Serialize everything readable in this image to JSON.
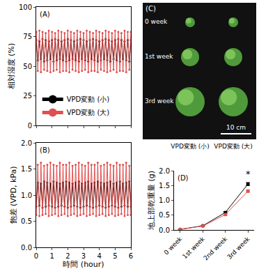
{
  "chart_data": [
    {
      "type": "line",
      "panel": "(A)",
      "y_label": "相対湿度 (%)",
      "x": [
        0,
        0.1,
        0.2,
        0.3,
        0.4,
        0.5,
        0.6,
        0.7,
        0.8,
        0.9,
        1,
        1.1,
        1.2,
        1.3,
        1.4,
        1.5,
        1.6,
        1.7,
        1.8,
        1.9,
        2,
        2.1,
        2.2,
        2.3,
        2.4,
        2.5,
        2.6,
        2.7,
        2.8,
        2.9,
        3,
        3.1,
        3.2,
        3.3,
        3.4,
        3.5,
        3.6,
        3.7,
        3.8,
        3.9,
        4,
        4.1,
        4.2,
        4.3,
        4.4,
        4.5,
        4.6,
        4.7,
        4.8,
        4.9,
        5,
        5.1,
        5.2,
        5.3,
        5.4,
        5.5,
        5.6,
        5.7,
        5.8,
        5.9,
        6
      ],
      "series": [
        {
          "name": "VPD変動 (小)",
          "color": "#000000",
          "marker": "circle",
          "values": [
            72,
            55,
            71,
            56,
            73,
            54,
            72,
            55,
            71,
            56,
            72,
            54,
            73,
            55,
            72,
            56,
            71,
            55,
            72,
            54,
            73,
            55,
            72,
            56,
            71,
            55,
            72,
            54,
            73,
            56,
            72,
            55,
            71,
            54,
            72,
            56,
            73,
            55,
            72,
            54,
            71,
            55,
            72,
            56,
            73,
            55,
            72,
            54,
            71,
            56,
            72,
            55,
            73,
            54,
            72,
            56,
            71,
            55,
            72,
            54,
            72
          ]
        },
        {
          "name": "VPD変動 (大)",
          "color": "#e0504f",
          "marker": "circle",
          "values": [
            79,
            46,
            80,
            45,
            79,
            47,
            78,
            46,
            80,
            45,
            79,
            46,
            78,
            47,
            80,
            45,
            79,
            46,
            78,
            46,
            80,
            45,
            79,
            47,
            78,
            46,
            80,
            45,
            79,
            46,
            78,
            47,
            80,
            45,
            79,
            46,
            78,
            46,
            80,
            45,
            79,
            47,
            78,
            46,
            80,
            45,
            79,
            46,
            78,
            47,
            80,
            45,
            79,
            46,
            78,
            46,
            80,
            45,
            79,
            47,
            79
          ]
        }
      ],
      "xlim": [
        0,
        6
      ],
      "xticks": [
        0,
        1,
        2,
        3,
        4,
        5,
        6
      ],
      "ylim": [
        0,
        100
      ],
      "yticks": [
        0,
        25,
        50,
        75,
        100
      ],
      "tick_labels": "y",
      "legend": "lower left",
      "grid": false
    },
    {
      "type": "line",
      "panel": "(B)",
      "x_label": "時間 (hour)",
      "y_label": "飽差 (VPD, kPa)",
      "x": [
        0,
        0.1,
        0.2,
        0.3,
        0.4,
        0.5,
        0.6,
        0.7,
        0.8,
        0.9,
        1,
        1.1,
        1.2,
        1.3,
        1.4,
        1.5,
        1.6,
        1.7,
        1.8,
        1.9,
        2,
        2.1,
        2.2,
        2.3,
        2.4,
        2.5,
        2.6,
        2.7,
        2.8,
        2.9,
        3,
        3.1,
        3.2,
        3.3,
        3.4,
        3.5,
        3.6,
        3.7,
        3.8,
        3.9,
        4,
        4.1,
        4.2,
        4.3,
        4.4,
        4.5,
        4.6,
        4.7,
        4.8,
        4.9,
        5,
        5.1,
        5.2,
        5.3,
        5.4,
        5.5,
        5.6,
        5.7,
        5.8,
        5.9,
        6
      ],
      "series": [
        {
          "name": "VPD変動 (小)",
          "color": "#000000",
          "marker": "circle",
          "values": [
            0.78,
            1.24,
            0.8,
            1.22,
            0.76,
            1.26,
            0.78,
            1.24,
            0.8,
            1.22,
            0.78,
            1.26,
            0.76,
            1.24,
            0.78,
            1.22,
            0.8,
            1.24,
            0.78,
            1.26,
            0.76,
            1.24,
            0.78,
            1.22,
            0.8,
            1.24,
            0.78,
            1.26,
            0.76,
            1.22,
            0.78,
            1.24,
            0.8,
            1.26,
            0.78,
            1.22,
            0.76,
            1.24,
            0.78,
            1.26,
            0.8,
            1.24,
            0.78,
            1.22,
            0.76,
            1.24,
            0.78,
            1.26,
            0.8,
            1.22,
            0.78,
            1.24,
            0.76,
            1.26,
            0.78,
            1.22,
            0.8,
            1.24,
            0.78,
            1.26,
            0.78
          ]
        },
        {
          "name": "VPD変動 (大)",
          "color": "#e0504f",
          "marker": "circle",
          "values": [
            0.62,
            1.58,
            0.6,
            1.62,
            0.62,
            1.56,
            0.64,
            1.58,
            0.6,
            1.62,
            0.62,
            1.58,
            0.64,
            1.56,
            0.6,
            1.62,
            0.62,
            1.58,
            0.64,
            1.58,
            0.6,
            1.62,
            0.62,
            1.56,
            0.64,
            1.58,
            0.6,
            1.62,
            0.62,
            1.58,
            0.64,
            1.56,
            0.6,
            1.62,
            0.62,
            1.58,
            0.64,
            1.58,
            0.6,
            1.62,
            0.62,
            1.56,
            0.64,
            1.58,
            0.6,
            1.62,
            0.62,
            1.58,
            0.64,
            1.56,
            0.6,
            1.62,
            0.62,
            1.58,
            0.64,
            1.58,
            0.6,
            1.62,
            0.62,
            1.56,
            0.62
          ]
        }
      ],
      "xlim": [
        0,
        6
      ],
      "xticks": [
        0,
        1,
        2,
        3,
        4,
        5,
        6
      ],
      "ylim": [
        0,
        2
      ],
      "yticks": [
        {
          "value": 0,
          "label": "0.0"
        },
        {
          "value": 0.5,
          "label": "0.5"
        },
        {
          "value": 1,
          "label": "1.0"
        },
        {
          "value": 1.5,
          "label": "1.5"
        },
        {
          "value": 2,
          "label": "2.0"
        }
      ],
      "grid": false
    },
    {
      "type": "line",
      "panel": "(D)",
      "y_label": "地上部乾重量 (g)",
      "categories": [
        "0 week",
        "1st week",
        "2nd week",
        "3rd week"
      ],
      "series": [
        {
          "name": "VPD変動 (小)",
          "color": "#000000",
          "marker": "circle",
          "values": [
            0.02,
            0.14,
            0.59,
            1.55
          ],
          "errors": [
            0.003,
            0.01,
            0.03,
            0.05
          ]
        },
        {
          "name": "VPD変動 (大)",
          "color": "#e0504f",
          "marker": "circle",
          "values": [
            0.02,
            0.13,
            0.52,
            1.31
          ],
          "errors": [
            0.003,
            0.01,
            0.03,
            0.04
          ]
        }
      ],
      "ylim": [
        0,
        2
      ],
      "yticks": [
        {
          "value": 0,
          "label": "0.0"
        },
        {
          "value": 0.5,
          "label": "0.5"
        },
        {
          "value": 1,
          "label": "1.0"
        },
        {
          "value": 1.5,
          "label": "1.5"
        },
        {
          "value": 2,
          "label": "2.0"
        }
      ],
      "annotations": [
        {
          "category": "3rd week",
          "y": 1.68,
          "text": "*"
        }
      ],
      "grid": false
    }
  ],
  "photo": {
    "label": "(C)",
    "rows": [
      "0 week",
      "1st week",
      "3rd week"
    ],
    "columns": [
      "VPD変動 (小)",
      "VPD変動 (大)"
    ],
    "scale_bar": "10 cm"
  }
}
